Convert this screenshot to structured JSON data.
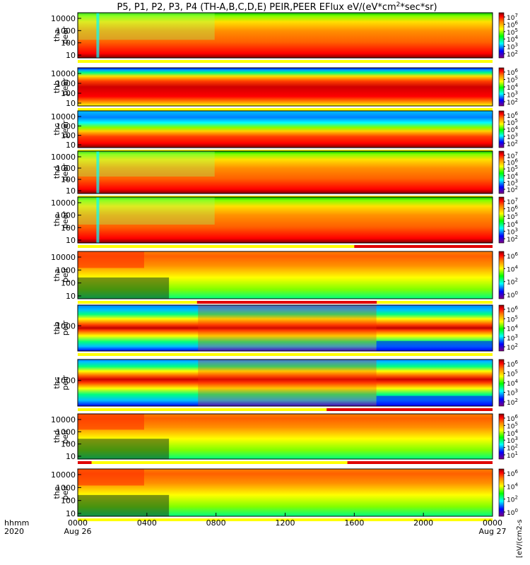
{
  "chart_data": {
    "type": "heatmap",
    "title": "P5, P1, P2, P3, P4 (TH-A,B,C,D,E) PEIR,PEER EFlux eV/(eV*cm",
    "title_unit_tail": "*sec*sr)",
    "title_sup": "2",
    "x_axis": {
      "label_line1": "hhmm",
      "label_line2": "2020",
      "ticks": [
        "0000",
        "0400",
        "0800",
        "1200",
        "1600",
        "2000",
        "0000"
      ],
      "tick_hours": [
        0,
        4,
        8,
        12,
        16,
        20,
        24
      ],
      "dates": [
        {
          "hour": 0,
          "label": "Aug 26"
        },
        {
          "hour": 24,
          "label": "Aug 27"
        }
      ],
      "range_hours": [
        0,
        24
      ]
    },
    "colorbar_unit_label": "[eV/(cm2-s",
    "panels": [
      {
        "probe": "tha",
        "label1": "tha",
        "label2": "peer",
        "yticks": [
          "10",
          "100",
          "1000",
          "10000"
        ],
        "cbar_ticks": [
          "10",
          "10",
          "10",
          "10",
          "10",
          "10"
        ],
        "cbar_exp": [
          "2",
          "3",
          "4",
          "5",
          "6",
          "7"
        ],
        "palette": "eesa",
        "red_bar": [],
        "colorbar_label": ""
      },
      {
        "probe": "thb",
        "label1": "thb",
        "label2": "peer",
        "yticks": [
          "10",
          "100",
          "1000",
          "10000"
        ],
        "cbar_ticks": [
          "10",
          "10",
          "10",
          "10",
          "10"
        ],
        "cbar_exp": [
          "2",
          "3",
          "4",
          "5",
          "6"
        ],
        "palette": "eesa_b",
        "red_bar": [],
        "colorbar_label": ""
      },
      {
        "probe": "thc",
        "label1": "thc",
        "label2": "peer",
        "yticks": [
          "10",
          "100",
          "1000",
          "10000"
        ],
        "cbar_ticks": [
          "10",
          "10",
          "10",
          "10",
          "10"
        ],
        "cbar_exp": [
          "2",
          "3",
          "4",
          "5",
          "6"
        ],
        "palette": "eesa_c",
        "red_bar": [],
        "colorbar_label": ""
      },
      {
        "probe": "thd",
        "label1": "thd",
        "label2": "peer",
        "yticks": [
          "10",
          "100",
          "1000",
          "10000"
        ],
        "cbar_ticks": [
          "10",
          "10",
          "10",
          "10",
          "10",
          "10"
        ],
        "cbar_exp": [
          "2",
          "3",
          "4",
          "5",
          "6",
          "7"
        ],
        "palette": "eesa",
        "red_bar": [],
        "colorbar_label": ""
      },
      {
        "probe": "the",
        "label1": "the",
        "label2": "peer",
        "yticks": [
          "10",
          "100",
          "1000",
          "10000"
        ],
        "cbar_ticks": [
          "10",
          "10",
          "10",
          "10",
          "10",
          "10"
        ],
        "cbar_exp": [
          "2",
          "3",
          "4",
          "5",
          "6",
          "7"
        ],
        "palette": "eesa",
        "red_bar": [
          [
            16.0,
            24.0
          ]
        ],
        "colorbar_label": ""
      },
      {
        "probe": "tha",
        "label1": "tha",
        "label2": "peir",
        "yticks": [
          "10",
          "100",
          "1000",
          "10000"
        ],
        "cbar_ticks": [
          "10",
          "10",
          "10",
          "10"
        ],
        "cbar_exp": [
          "0",
          "2",
          "4",
          "6"
        ],
        "palette": "esa_ion",
        "red_bar": [
          [
            6.9,
            17.3
          ]
        ],
        "colorbar_label": ""
      },
      {
        "probe": "thb",
        "label1": "thb",
        "label2": "peir",
        "yticks": [
          "1000"
        ],
        "cbar_ticks": [
          "10",
          "10",
          "10",
          "10",
          "10"
        ],
        "cbar_exp": [
          "2",
          "3",
          "4",
          "5",
          "6"
        ],
        "palette": "ion_b",
        "red_bar": [],
        "colorbar_label": ""
      },
      {
        "probe": "thc",
        "label1": "thc",
        "label2": "peir",
        "yticks": [
          "1000"
        ],
        "cbar_ticks": [
          "10",
          "10",
          "10",
          "10",
          "10"
        ],
        "cbar_exp": [
          "2",
          "3",
          "4",
          "5",
          "6"
        ],
        "palette": "ion_c",
        "red_bar": [
          [
            14.4,
            24.0
          ]
        ],
        "colorbar_label": ""
      },
      {
        "probe": "thd",
        "label1": "thd",
        "label2": "peir",
        "yticks": [
          "10",
          "100",
          "1000",
          "10000"
        ],
        "cbar_ticks": [
          "10",
          "10",
          "10",
          "10",
          "10",
          "10"
        ],
        "cbar_exp": [
          "1",
          "2",
          "3",
          "4",
          "5",
          "6"
        ],
        "palette": "esa_ion",
        "red_bar": [
          [
            0,
            0.8
          ],
          [
            15.6,
            24.0
          ]
        ],
        "colorbar_label": ""
      },
      {
        "probe": "the",
        "label1": "the",
        "label2": "peir",
        "yticks": [
          "10",
          "100",
          "1000",
          "10000"
        ],
        "cbar_ticks": [
          "10",
          "10",
          "10",
          "10"
        ],
        "cbar_exp": [
          "0",
          "2",
          "4",
          "6"
        ],
        "palette": "esa_ion",
        "red_bar": [],
        "colorbar_label": ""
      }
    ],
    "colors": {
      "bar_yellow": "#ffff00",
      "bar_red": "#e00000",
      "spectrogram_scale": [
        "#7f007f",
        "#0000ff",
        "#00ffff",
        "#00ff00",
        "#ffff00",
        "#ff8000",
        "#ff0000",
        "#800000"
      ]
    }
  }
}
